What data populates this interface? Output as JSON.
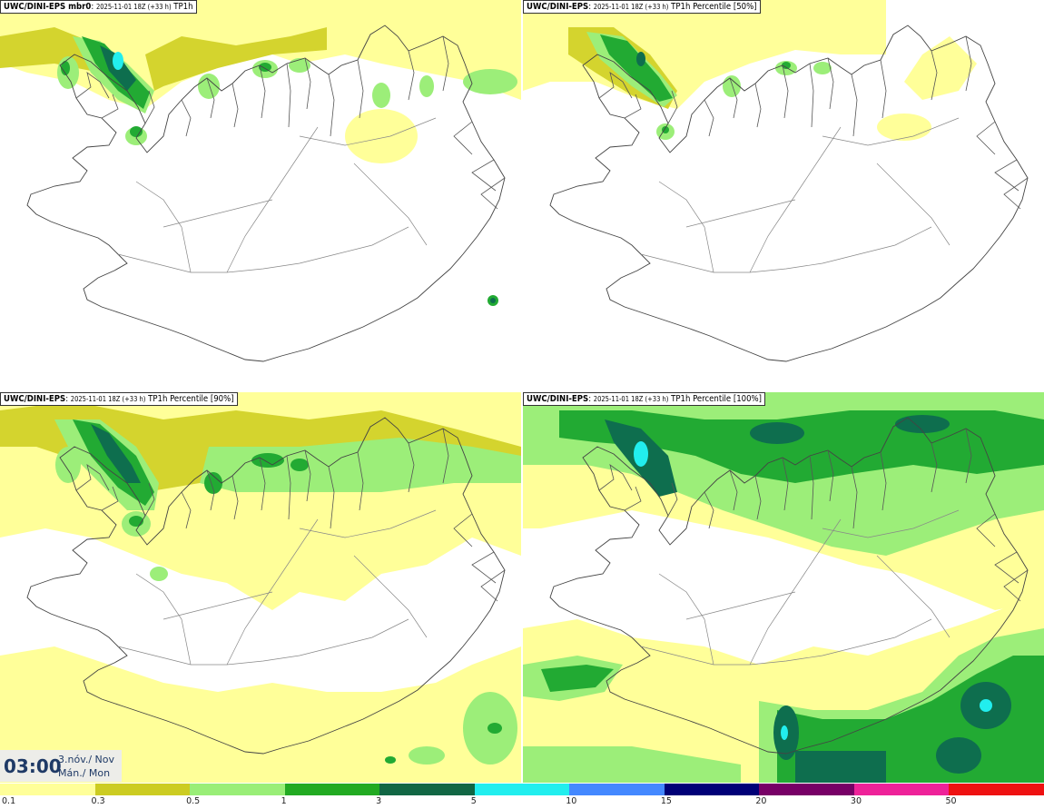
{
  "panels": [
    {
      "model": "UWC/DINI-EPS mbr0",
      "run": "2025-11-01 18Z (+33 h)",
      "field": "TP1h"
    },
    {
      "model": "UWC/DINI-EPS",
      "run": "2025-11-01 18Z (+33 h)",
      "field": "TP1h Percentile [50%]"
    },
    {
      "model": "UWC/DINI-EPS",
      "run": "2025-11-01 18Z (+33 h)",
      "field": "TP1h Percentile [90%]"
    },
    {
      "model": "UWC/DINI-EPS",
      "run": "2025-11-01 18Z (+33 h)",
      "field": "TP1h Percentile [100%]"
    }
  ],
  "valid_time": {
    "time": "03:00",
    "date_line1": "3.nóv./ Nov",
    "date_line2": "Mán./ Mon"
  },
  "legend": {
    "labels": [
      "0.1",
      "0.3",
      "0.5",
      "1",
      "3",
      "5",
      "10",
      "15",
      "20",
      "30",
      "50"
    ],
    "colors": [
      "#ffff99",
      "#cccc22",
      "#99ee77",
      "#22aa22",
      "#116644",
      "#22eeee",
      "#4488ff",
      "#000077",
      "#770066",
      "#ee2299",
      "#ee1111"
    ]
  },
  "palette": {
    "c01": "#ffff99",
    "c03": "#d4d42e",
    "c05": "#9cee79",
    "c1": "#22aa33",
    "c3": "#0e6e4e",
    "c5": "#22eeee",
    "coast": "#444444"
  }
}
